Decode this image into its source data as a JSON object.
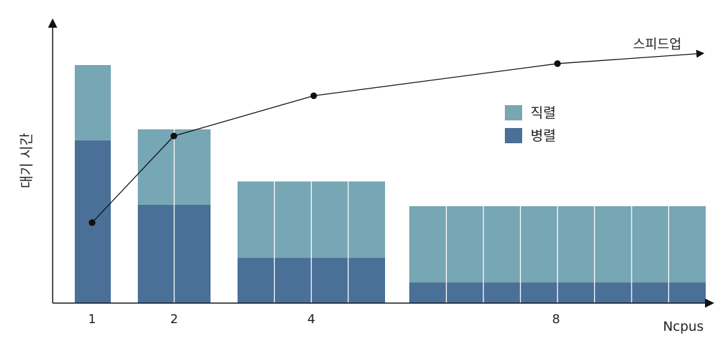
{
  "chart_data": {
    "type": "bar",
    "subtype": "stacked-segmented-with-line",
    "ylabel": "대기 시간",
    "xlabel": "Ncpus",
    "categories": [
      "1",
      "2",
      "4",
      "8"
    ],
    "bars_per_category": [
      1,
      2,
      4,
      8
    ],
    "y_scale": "relative",
    "ylim": [
      0,
      100
    ],
    "series": [
      {
        "name": "병렬",
        "color": "#4a7098",
        "values": [
          68.4,
          41.3,
          19.1,
          8.7
        ]
      },
      {
        "name": "직렬",
        "color": "#77a6b4",
        "values": [
          31.6,
          31.7,
          32.0,
          32.0
        ]
      }
    ],
    "line_series": {
      "name": "스피드업",
      "points": [
        {
          "x": "1",
          "y": 33.8
        },
        {
          "x": "2",
          "y": 70.2
        },
        {
          "x": "4",
          "y": 87.1
        },
        {
          "x": "8",
          "y": 100.6
        }
      ]
    },
    "legend": {
      "position": "upper-right",
      "entries": [
        {
          "label": "직렬",
          "color": "#77a6b4"
        },
        {
          "label": "병렬",
          "color": "#4a7098"
        }
      ]
    },
    "grid": false
  }
}
